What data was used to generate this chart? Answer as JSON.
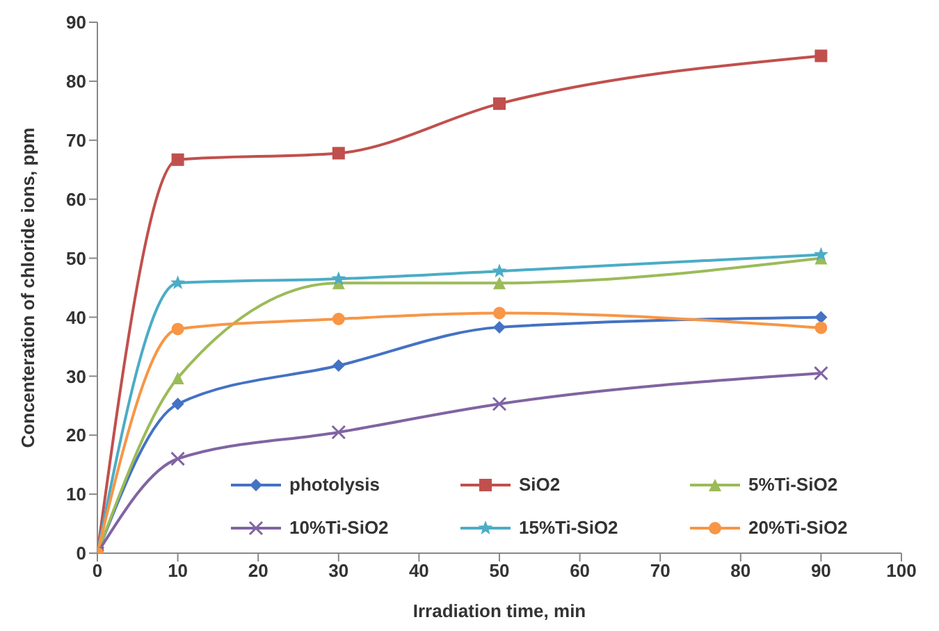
{
  "chart_data": {
    "type": "line",
    "xlabel": "Irradiation time, min",
    "ylabel": "Concenteration of chloride ions, ppm",
    "x": [
      0,
      10,
      30,
      50,
      90
    ],
    "xlim": [
      0,
      100
    ],
    "xticks": [
      0,
      10,
      20,
      30,
      40,
      50,
      60,
      70,
      80,
      90,
      100
    ],
    "ylim": [
      0,
      90
    ],
    "yticks": [
      0,
      10,
      20,
      30,
      40,
      50,
      60,
      70,
      80,
      90
    ],
    "grid": false,
    "legend": "bottom",
    "series": [
      {
        "name": "photolysis",
        "color": "#4472c4",
        "marker": "diamond",
        "values": [
          0,
          25.3,
          31.8,
          38.3,
          40
        ]
      },
      {
        "name": "SiO2",
        "color": "#c0504d",
        "marker": "square",
        "values": [
          0,
          66.7,
          67.8,
          76.2,
          84.3
        ]
      },
      {
        "name": "5%Ti-SiO2",
        "color": "#9bbb59",
        "marker": "triangle",
        "values": [
          0,
          29.7,
          45.8,
          45.8,
          50
        ]
      },
      {
        "name": "10%Ti-SiO2",
        "color": "#8064a2",
        "marker": "cross",
        "values": [
          0,
          16,
          20.5,
          25.3,
          30.5
        ]
      },
      {
        "name": "15%Ti-SiO2",
        "color": "#4bacc6",
        "marker": "star",
        "values": [
          0,
          45.8,
          46.5,
          47.8,
          50.6
        ]
      },
      {
        "name": "20%Ti-SiO2",
        "color": "#f79646",
        "marker": "circle",
        "values": [
          0,
          38,
          39.7,
          40.7,
          38.2
        ]
      }
    ]
  }
}
